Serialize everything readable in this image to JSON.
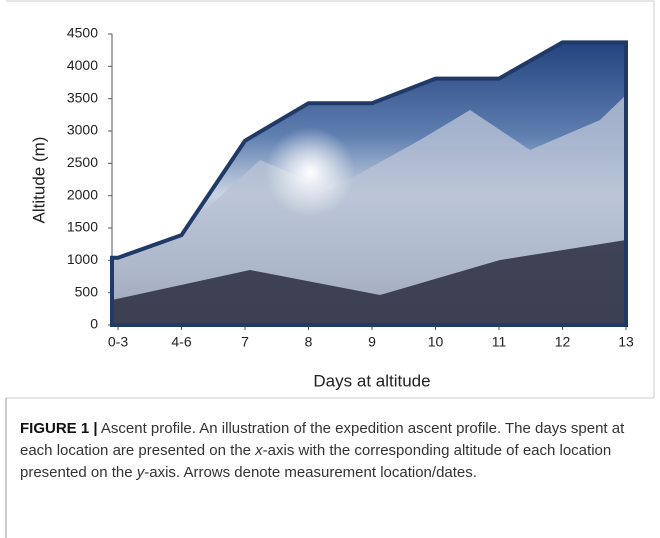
{
  "chart_data": {
    "type": "area",
    "categories": [
      "0-3",
      "4-6",
      "7",
      "8",
      "9",
      "10",
      "11",
      "12",
      "13"
    ],
    "values": [
      1040,
      1390,
      2850,
      3430,
      3430,
      3810,
      3810,
      4370,
      4370
    ],
    "color": "#1f3a66",
    "ylim": [
      0,
      4500
    ],
    "yticks": [
      0,
      500,
      1000,
      1500,
      2000,
      2500,
      3000,
      3500,
      4000,
      4500
    ],
    "xlabel": "Days at altitude",
    "ylabel": "Altitude (m)"
  },
  "caption": {
    "label": "FIGURE 1 |",
    "parts": [
      " Ascent profile. An illustration of the expedition ascent profile. The days spent at each location are presented on the ",
      "x",
      "-axis with the corresponding altitude of each location presented on the ",
      "y",
      "-axis. Arrows denote measurement location/dates."
    ]
  }
}
